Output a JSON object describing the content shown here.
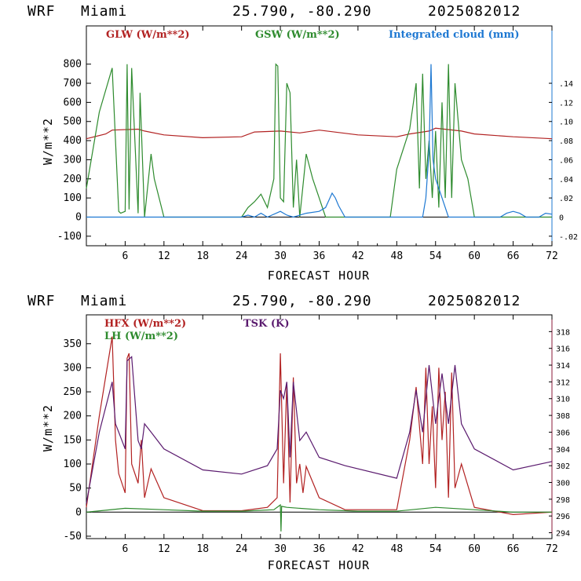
{
  "panels": [
    {
      "header": {
        "model": "WRF",
        "city": "Miami",
        "coords": "25.790, -80.290",
        "date": "2025082012"
      },
      "xlabel": "FORECAST HOUR",
      "ylabel": "W/m**2",
      "colors": {
        "GLW": "#b22222",
        "GSW": "#2e8b2e",
        "Integrated cloud (mm)": "#1e78d2",
        "axis_right": "#1e78d2"
      },
      "legend": [
        "GLW (W/m**2)",
        "GSW (W/m**2)",
        "Integrated cloud (mm)"
      ]
    },
    {
      "header": {
        "model": "WRF",
        "city": "Miami",
        "coords": "25.790, -80.290",
        "date": "2025082012"
      },
      "xlabel": "FORECAST HOUR",
      "ylabel": "W/m**2",
      "colors": {
        "HFX": "#b22222",
        "LH": "#2e8b2e",
        "TSK": "#5a1a6e",
        "axis_right": "#8b1a3a"
      },
      "legend": [
        "HFX (W/m**2)",
        "LH (W/m**2)",
        "TSK (K)"
      ]
    }
  ],
  "chart_data": [
    {
      "type": "line",
      "xlabel": "FORECAST HOUR",
      "ylabel": "W/m**2",
      "xlim": [
        0,
        72
      ],
      "ylim": [
        -150,
        1000
      ],
      "x_ticks": [
        6,
        12,
        18,
        24,
        30,
        36,
        42,
        48,
        54,
        60,
        66,
        72
      ],
      "y_ticks": [
        -100,
        0,
        100,
        200,
        300,
        400,
        500,
        600,
        700,
        800
      ],
      "y2lim": [
        -0.03,
        0.2
      ],
      "y2_ticks": [
        -0.02,
        0,
        0.02,
        0.04,
        0.06,
        0.08,
        0.1,
        0.12,
        0.14
      ],
      "y2_tick_labels": [
        "-.02",
        "0",
        ".02",
        ".04",
        ".06",
        ".08",
        ".10",
        ".12",
        ".14"
      ],
      "series": [
        {
          "name": "GLW (W/m**2)",
          "axis": "left",
          "color": "#b22222",
          "x": [
            0,
            3,
            4,
            8,
            9,
            12,
            18,
            24,
            26,
            30,
            33,
            36,
            42,
            48,
            50,
            53,
            54,
            58,
            60,
            66,
            72
          ],
          "y": [
            410,
            435,
            455,
            460,
            450,
            430,
            415,
            420,
            445,
            450,
            440,
            455,
            430,
            420,
            435,
            450,
            465,
            450,
            435,
            420,
            410
          ]
        },
        {
          "name": "GSW (W/m**2)",
          "axis": "left",
          "color": "#2e8b2e",
          "x": [
            0,
            2,
            4,
            5,
            5.3,
            6,
            6.3,
            6.6,
            7,
            8,
            8.3,
            9,
            10,
            10.5,
            12,
            24,
            25,
            26,
            27,
            28,
            29,
            29.3,
            29.6,
            30,
            30.5,
            31,
            31.5,
            32,
            32.5,
            33,
            34,
            35,
            36,
            37,
            47,
            48,
            50,
            51,
            51.5,
            52,
            52.5,
            53,
            53.5,
            54,
            54.5,
            55,
            55.5,
            56,
            56.5,
            57,
            58,
            59,
            60,
            72
          ],
          "y": [
            150,
            550,
            780,
            30,
            20,
            30,
            800,
            40,
            780,
            20,
            650,
            0,
            330,
            200,
            0,
            0,
            50,
            80,
            120,
            50,
            200,
            800,
            790,
            100,
            80,
            700,
            650,
            50,
            300,
            0,
            330,
            200,
            100,
            0,
            0,
            250,
            460,
            700,
            150,
            750,
            200,
            400,
            100,
            450,
            50,
            600,
            100,
            800,
            100,
            700,
            300,
            200,
            0,
            0
          ]
        },
        {
          "name": "Integrated cloud (mm)",
          "axis": "right",
          "color": "#1e78d2",
          "x": [
            0,
            24,
            25,
            26,
            27,
            28,
            30,
            31,
            32,
            34,
            36,
            37,
            38,
            38.5,
            39,
            40,
            41,
            48,
            52,
            52.5,
            53,
            53.3,
            53.6,
            54,
            55,
            56,
            62,
            64,
            65,
            66,
            67,
            68,
            70,
            71,
            72
          ],
          "y": [
            0,
            0,
            0.002,
            0.0,
            0.004,
            0.0,
            0.006,
            0.002,
            0.0,
            0.004,
            0.006,
            0.01,
            0.025,
            0.02,
            0.012,
            0.0,
            0.0,
            0.0,
            0.0,
            0.02,
            0.07,
            0.16,
            0.06,
            0.04,
            0.02,
            0.0,
            0.0,
            0.0,
            0.004,
            0.006,
            0.004,
            0.0,
            0.0,
            0.004,
            0.003
          ]
        }
      ]
    },
    {
      "type": "line",
      "xlabel": "FORECAST HOUR",
      "ylabel": "W/m**2",
      "xlim": [
        0,
        72
      ],
      "ylim": [
        -55,
        410
      ],
      "x_ticks": [
        6,
        12,
        18,
        24,
        30,
        36,
        42,
        48,
        54,
        60,
        66,
        72
      ],
      "y_ticks": [
        -50,
        0,
        50,
        100,
        150,
        200,
        250,
        300,
        350
      ],
      "y2lim": [
        293.3,
        320
      ],
      "y2_ticks": [
        294,
        296,
        298,
        300,
        302,
        304,
        306,
        308,
        310,
        312,
        314,
        316,
        318
      ],
      "series": [
        {
          "name": "HFX (W/m**2)",
          "axis": "left",
          "color": "#b22222",
          "x": [
            0,
            2,
            4,
            4.5,
            5,
            6,
            6.3,
            6.6,
            7,
            8,
            8.5,
            9,
            10,
            12,
            18,
            24,
            28,
            29.5,
            30,
            30.5,
            31,
            31.5,
            32,
            32.5,
            33,
            33.5,
            34,
            36,
            40,
            48,
            50,
            51,
            52,
            52.5,
            53,
            53.5,
            54,
            54.5,
            55,
            55.5,
            56,
            56.5,
            57,
            58,
            60,
            66,
            72
          ],
          "y": [
            10,
            200,
            365,
            150,
            80,
            40,
            320,
            330,
            100,
            60,
            150,
            30,
            90,
            30,
            3,
            3,
            10,
            30,
            330,
            60,
            270,
            20,
            280,
            60,
            100,
            40,
            95,
            30,
            5,
            5,
            150,
            260,
            100,
            300,
            100,
            220,
            50,
            300,
            150,
            250,
            30,
            290,
            50,
            100,
            10,
            -5,
            0
          ]
        },
        {
          "name": "LH (W/m**2)",
          "axis": "left",
          "color": "#2e8b2e",
          "x": [
            0,
            6,
            12,
            18,
            24,
            29,
            30,
            30.1,
            30.2,
            31,
            36,
            42,
            48,
            54,
            60,
            66,
            72
          ],
          "y": [
            0,
            8,
            5,
            2,
            2,
            5,
            15,
            -40,
            12,
            10,
            5,
            2,
            2,
            10,
            5,
            0,
            0
          ]
        },
        {
          "name": "TSK (K)",
          "axis": "right",
          "color": "#5a1a6e",
          "x": [
            0,
            2,
            4,
            4.5,
            5,
            6,
            6.3,
            7,
            8,
            8.5,
            9,
            10,
            12,
            18,
            24,
            28,
            29.5,
            30,
            30.5,
            31,
            31.5,
            32,
            33,
            34,
            36,
            40,
            48,
            50,
            51,
            52,
            53,
            54,
            55,
            56,
            57,
            58,
            60,
            66,
            72
          ],
          "y": [
            297.5,
            306,
            312,
            307,
            306,
            304,
            314.5,
            315,
            305,
            304,
            307,
            306,
            304,
            301.5,
            301,
            302,
            304,
            311,
            310,
            312,
            303,
            312,
            305,
            306,
            303,
            302,
            300.5,
            306,
            311,
            306,
            314,
            307,
            313,
            307,
            314,
            307,
            304,
            301.5,
            302.5
          ]
        }
      ]
    }
  ]
}
